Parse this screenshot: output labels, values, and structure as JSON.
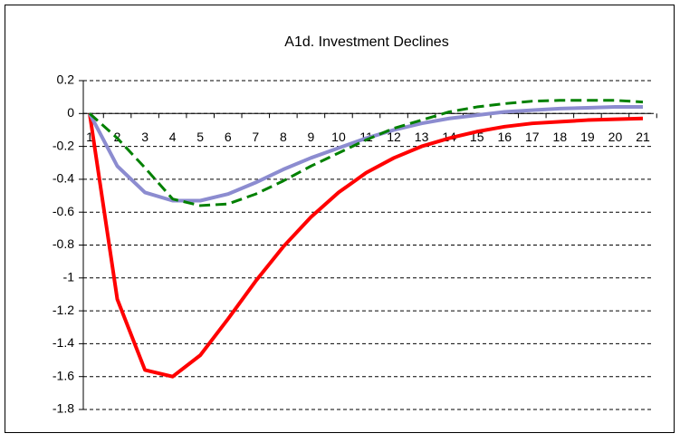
{
  "chart_data": {
    "type": "line",
    "title": "A1d. Investment Declines",
    "categories": [
      1,
      2,
      3,
      4,
      5,
      6,
      7,
      8,
      9,
      10,
      11,
      12,
      13,
      14,
      15,
      16,
      17,
      18,
      19,
      20,
      21
    ],
    "series": [
      {
        "color": "#ff0000",
        "style": "solid",
        "values": [
          0,
          -1.13,
          -1.56,
          -1.6,
          -1.47,
          -1.25,
          -1.02,
          -0.81,
          -0.63,
          -0.48,
          -0.36,
          -0.27,
          -0.2,
          -0.15,
          -0.11,
          -0.08,
          -0.06,
          -0.05,
          -0.04,
          -0.035,
          -0.03
        ]
      },
      {
        "color": "#8c8cd0",
        "style": "solid",
        "values": [
          0,
          -0.32,
          -0.48,
          -0.53,
          -0.53,
          -0.49,
          -0.42,
          -0.34,
          -0.27,
          -0.21,
          -0.15,
          -0.1,
          -0.06,
          -0.03,
          -0.01,
          0.01,
          0.02,
          0.03,
          0.035,
          0.04,
          0.04
        ]
      },
      {
        "color": "#008000",
        "style": "dashed",
        "values": [
          0,
          -0.15,
          -0.33,
          -0.52,
          -0.56,
          -0.55,
          -0.49,
          -0.41,
          -0.32,
          -0.24,
          -0.16,
          -0.09,
          -0.04,
          0.01,
          0.04,
          0.06,
          0.075,
          0.08,
          0.08,
          0.08,
          0.07
        ]
      }
    ],
    "ylim": [
      -1.8,
      0.2
    ],
    "yticks": [
      0.2,
      0,
      -0.2,
      -0.4,
      -0.6,
      -0.8,
      -1,
      -1.2,
      -1.4,
      -1.6,
      -1.8
    ],
    "grid": true
  }
}
